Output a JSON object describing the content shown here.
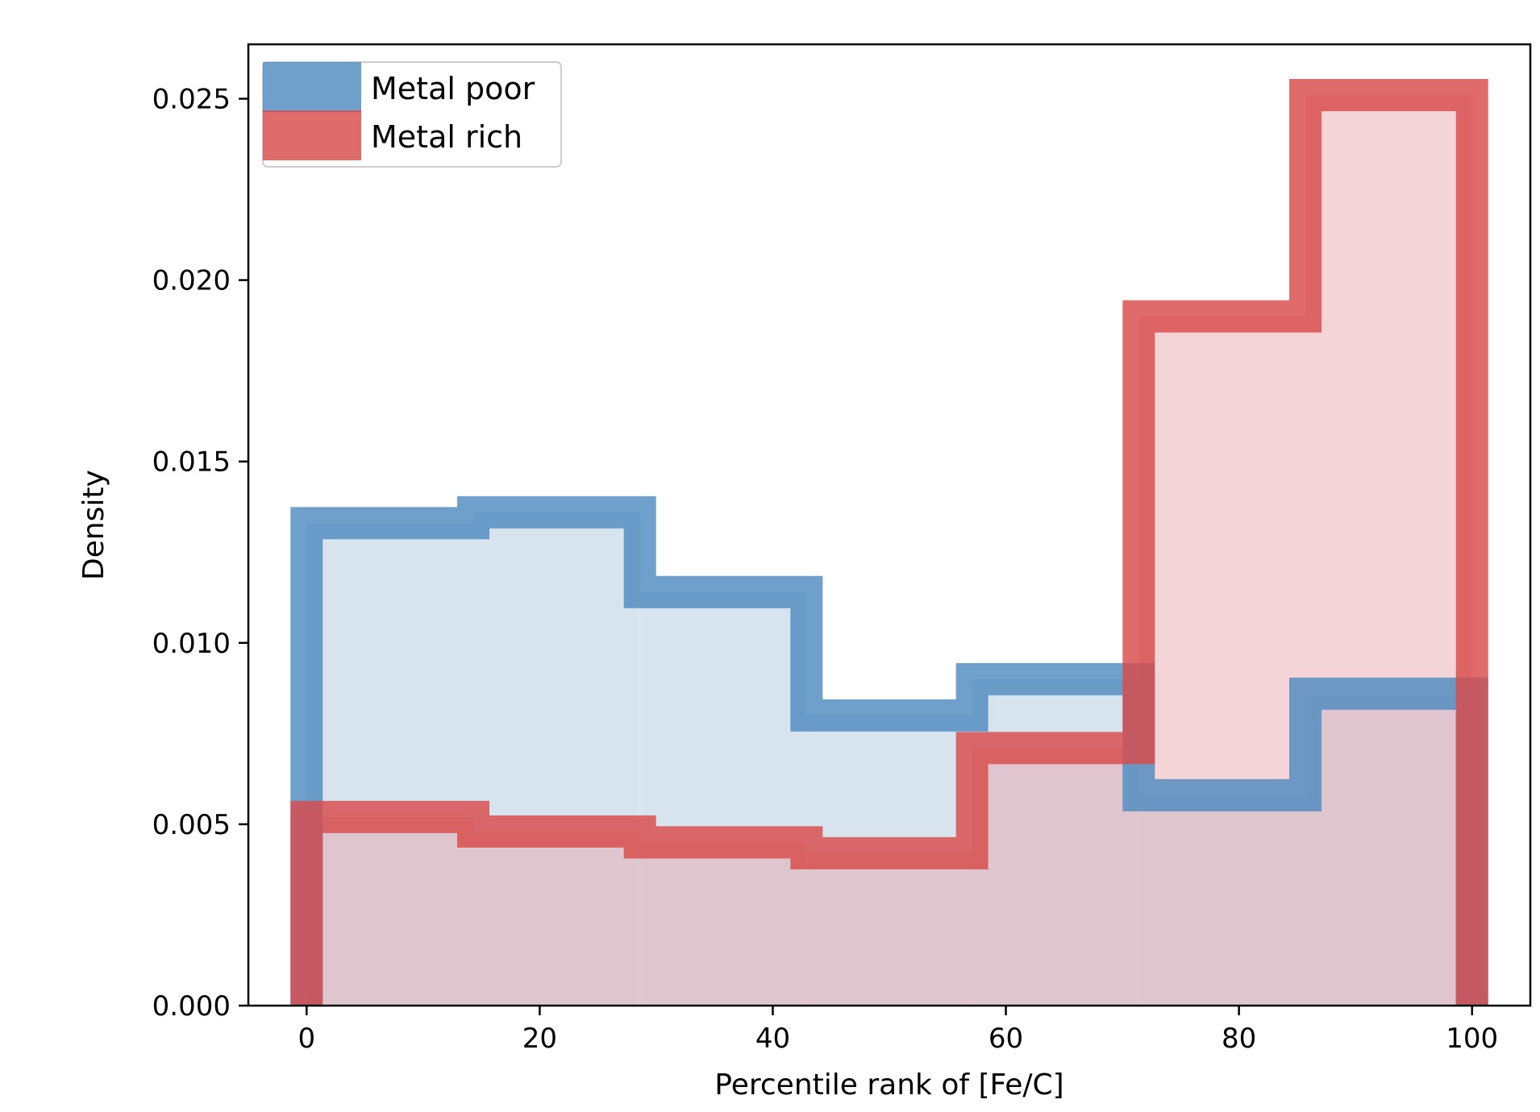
{
  "chart_data": {
    "type": "histogram-step",
    "title": "",
    "xlabel": "Percentile rank of [Fe/C]",
    "ylabel": "Density",
    "xlim": [
      -5,
      105
    ],
    "ylim": [
      0,
      0.0265
    ],
    "xticks": [
      0,
      20,
      40,
      60,
      80,
      100
    ],
    "xtick_labels": [
      "0",
      "20",
      "40",
      "60",
      "80",
      "100"
    ],
    "yticks": [
      0.0,
      0.005,
      0.01,
      0.015,
      0.02,
      0.025
    ],
    "ytick_labels": [
      "0.000",
      "0.005",
      "0.010",
      "0.015",
      "0.020",
      "0.025"
    ],
    "bin_edges": [
      0,
      14.3,
      28.6,
      42.9,
      57.1,
      71.4,
      85.7,
      100
    ],
    "legend_position": "top-left",
    "series": [
      {
        "name": "Metal poor",
        "values": [
          0.0133,
          0.0136,
          0.0114,
          0.008,
          0.009,
          0.0058,
          0.0086
        ],
        "color": "#4f8bbf",
        "fill": "#d7e3ed"
      },
      {
        "name": "Metal rich",
        "values": [
          0.0052,
          0.0048,
          0.0045,
          0.0042,
          0.0071,
          0.019,
          0.0251
        ],
        "color": "#d94a4a",
        "fill": "rgba(233,160,168,0.45)"
      }
    ]
  }
}
